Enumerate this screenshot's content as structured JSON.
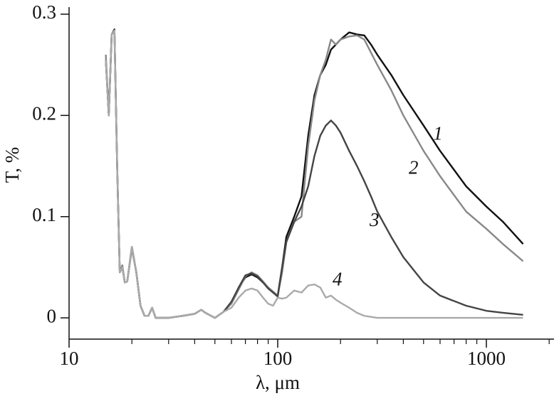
{
  "chart_data": {
    "type": "line",
    "xlabel": "λ, μm",
    "ylabel": "T, %",
    "log_x": true,
    "xlim": [
      10,
      2110
    ],
    "ylim": [
      -0.021,
      0.307
    ],
    "xticks": [
      10,
      100,
      1000
    ],
    "xminorticks": [
      20,
      30,
      40,
      50,
      60,
      70,
      80,
      90,
      200,
      300,
      400,
      500,
      600,
      700,
      800,
      900,
      2000
    ],
    "yticks": [
      0,
      0.1,
      0.2,
      0.3
    ],
    "x": [
      15,
      15.5,
      16,
      16.5,
      17,
      17.5,
      18,
      18.5,
      19,
      20,
      21,
      22,
      23,
      24,
      25,
      26,
      28,
      30,
      35,
      40,
      43,
      45,
      50,
      55,
      60,
      65,
      70,
      75,
      80,
      85,
      90,
      95,
      100,
      105,
      110,
      120,
      130,
      140,
      150,
      160,
      170,
      180,
      190,
      200,
      220,
      240,
      260,
      280,
      300,
      350,
      400,
      500,
      600,
      800,
      1000,
      1200,
      1500
    ],
    "series": [
      {
        "name": "1",
        "color": "#111111",
        "values": [
          0.255,
          0.2,
          0.28,
          0.285,
          0.15,
          0.045,
          0.05,
          0.035,
          0.036,
          0.07,
          0.045,
          0.012,
          0.002,
          0.002,
          0.01,
          0.0,
          0.0,
          0.0,
          0.002,
          0.004,
          0.008,
          0.005,
          0.0,
          0.006,
          0.015,
          0.03,
          0.04,
          0.043,
          0.04,
          0.035,
          0.03,
          0.025,
          0.022,
          0.05,
          0.08,
          0.1,
          0.12,
          0.18,
          0.22,
          0.24,
          0.25,
          0.265,
          0.27,
          0.275,
          0.282,
          0.28,
          0.279,
          0.27,
          0.26,
          0.24,
          0.22,
          0.19,
          0.165,
          0.13,
          0.11,
          0.095,
          0.073
        ]
      },
      {
        "name": "2",
        "color": "#888888",
        "values": [
          0.26,
          0.2,
          0.28,
          0.283,
          0.15,
          0.045,
          0.052,
          0.035,
          0.036,
          0.068,
          0.045,
          0.012,
          0.002,
          0.002,
          0.01,
          0.0,
          0.0,
          0.0,
          0.002,
          0.004,
          0.008,
          0.005,
          0.0,
          0.006,
          0.014,
          0.028,
          0.041,
          0.045,
          0.042,
          0.036,
          0.03,
          0.026,
          0.022,
          0.045,
          0.075,
          0.095,
          0.1,
          0.17,
          0.215,
          0.24,
          0.255,
          0.275,
          0.27,
          0.275,
          0.278,
          0.279,
          0.275,
          0.262,
          0.25,
          0.225,
          0.2,
          0.165,
          0.14,
          0.105,
          0.088,
          0.073,
          0.056
        ]
      },
      {
        "name": "3",
        "color": "#444444",
        "values": [
          0.255,
          0.2,
          0.28,
          0.284,
          0.15,
          0.045,
          0.05,
          0.035,
          0.036,
          0.07,
          0.045,
          0.012,
          0.002,
          0.002,
          0.01,
          0.0,
          0.0,
          0.0,
          0.002,
          0.004,
          0.008,
          0.005,
          0.0,
          0.006,
          0.016,
          0.03,
          0.042,
          0.044,
          0.041,
          0.035,
          0.029,
          0.025,
          0.021,
          0.05,
          0.075,
          0.095,
          0.11,
          0.13,
          0.16,
          0.18,
          0.19,
          0.195,
          0.19,
          0.183,
          0.165,
          0.15,
          0.135,
          0.12,
          0.105,
          0.08,
          0.06,
          0.035,
          0.022,
          0.012,
          0.007,
          0.005,
          0.003
        ]
      },
      {
        "name": "4",
        "color": "#aaaaaa",
        "values": [
          0.255,
          0.2,
          0.28,
          0.284,
          0.15,
          0.045,
          0.05,
          0.035,
          0.036,
          0.07,
          0.045,
          0.012,
          0.002,
          0.002,
          0.01,
          0.0,
          0.0,
          0.0,
          0.002,
          0.004,
          0.008,
          0.005,
          0.0,
          0.006,
          0.01,
          0.02,
          0.027,
          0.029,
          0.027,
          0.02,
          0.014,
          0.012,
          0.02,
          0.019,
          0.02,
          0.027,
          0.025,
          0.032,
          0.033,
          0.03,
          0.02,
          0.022,
          0.018,
          0.015,
          0.01,
          0.005,
          0.002,
          0.001,
          0,
          0,
          0,
          0,
          0,
          0,
          0,
          0,
          0
        ]
      }
    ]
  }
}
